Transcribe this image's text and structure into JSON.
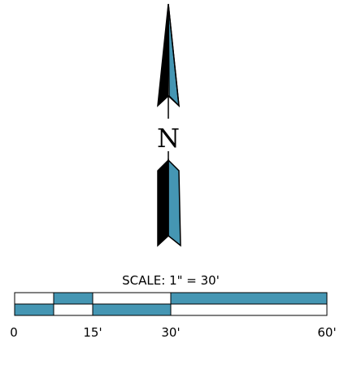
{
  "north_arrow": {
    "letter": "N"
  },
  "scale_bar": {
    "title": "SCALE: 1\" = 30'",
    "ticks": [
      "0",
      "15'",
      "30'",
      "60'"
    ]
  },
  "colors": {
    "accent": "#4596b3",
    "ink": "#000000",
    "paper": "#ffffff"
  }
}
